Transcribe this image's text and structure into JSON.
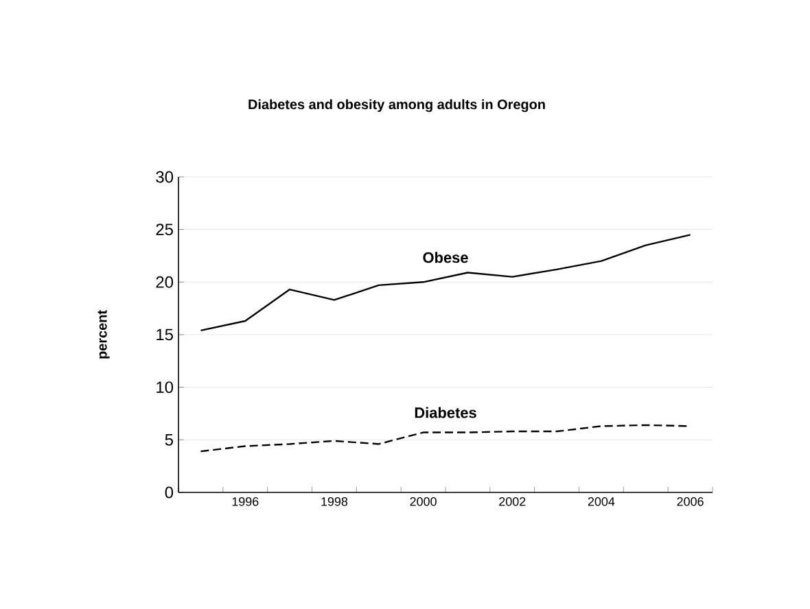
{
  "chart_data": {
    "type": "line",
    "title": "Diabetes and obesity among adults in Oregon",
    "ylabel": "percent",
    "categories": [
      null,
      "1996",
      null,
      "1998",
      null,
      "2000",
      null,
      "2002",
      null,
      "2004",
      null,
      "2006"
    ],
    "series": [
      {
        "name": "Obese",
        "color": "#000000",
        "line_style": "solid",
        "values": [
          15.4,
          16.3,
          19.3,
          18.3,
          19.7,
          20.0,
          20.9,
          20.5,
          21.2,
          22.0,
          23.5,
          24.5
        ]
      },
      {
        "name": "Diabetes",
        "color": "#000000",
        "line_style": "dashed",
        "values": [
          3.9,
          4.4,
          4.6,
          4.9,
          4.6,
          5.7,
          5.7,
          5.8,
          5.8,
          6.3,
          6.4,
          6.3
        ]
      }
    ],
    "ylim": [
      0,
      30
    ],
    "yticks": [
      0,
      5,
      10,
      15,
      20,
      25,
      30
    ],
    "grid": "y",
    "marker": "none"
  }
}
